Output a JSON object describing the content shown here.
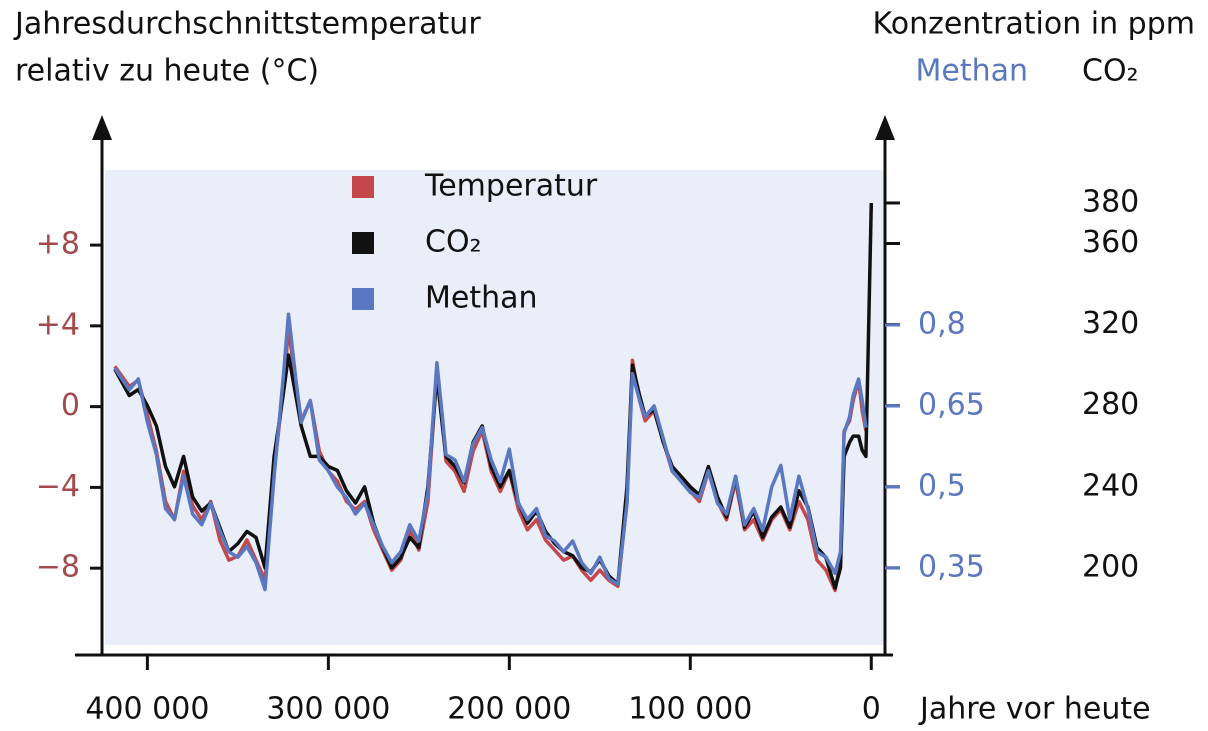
{
  "chart_data": {
    "type": "line",
    "y_label": [
      "Jahresdurchschnittstemperatur",
      "relativ zu heute (°C)"
    ],
    "y2_title": "Konzentration in ppm",
    "y2_label": "CO₂",
    "y3_label": "Methan",
    "x_label": "Jahre vor heute",
    "xlim": [
      440000,
      -12000
    ],
    "xticks": [
      {
        "value": 400000,
        "label": "400 000"
      },
      {
        "value": 300000,
        "label": "300 000"
      },
      {
        "value": 200000,
        "label": "200 000"
      },
      {
        "value": 100000,
        "label": "100 000"
      },
      0
    ],
    "ylim": [
      -12.3,
      13.7
    ],
    "yticks": [
      {
        "value": 8,
        "label": "+8"
      },
      {
        "value": 4,
        "label": "+4"
      },
      0,
      {
        "value": -4,
        "label": "−4"
      },
      {
        "value": -8,
        "label": "−8"
      }
    ],
    "y2lim": [
      157,
      416
    ],
    "y2ticks": [
      380,
      360,
      320,
      280,
      240,
      200
    ],
    "y3lim": [
      0.189,
      1.161
    ],
    "y3ticks": [
      {
        "value": 0.8,
        "label": "0,8"
      },
      {
        "value": 0.65,
        "label": "0,65"
      },
      {
        "value": 0.5,
        "label": "0,5"
      },
      {
        "value": 0.35,
        "label": "0,35"
      }
    ],
    "x": [
      418000,
      410000,
      405000,
      400000,
      395000,
      390000,
      385000,
      380000,
      375000,
      370000,
      365000,
      360000,
      355000,
      350000,
      345000,
      340000,
      335000,
      330000,
      325000,
      322000,
      318000,
      315000,
      310000,
      305000,
      300000,
      295000,
      290000,
      285000,
      280000,
      275000,
      270000,
      265000,
      260000,
      255000,
      250000,
      245000,
      240000,
      237000,
      235000,
      230000,
      225000,
      220000,
      215000,
      210000,
      205000,
      200000,
      195000,
      190000,
      185000,
      180000,
      175000,
      170000,
      165000,
      160000,
      155000,
      150000,
      145000,
      140000,
      135000,
      132000,
      128000,
      125000,
      120000,
      115000,
      110000,
      105000,
      100000,
      95000,
      90000,
      85000,
      80000,
      75000,
      70000,
      65000,
      60000,
      55000,
      50000,
      45000,
      40000,
      35000,
      30000,
      25000,
      20000,
      17000,
      15000,
      12000,
      10000,
      7000,
      5000,
      3000,
      0
    ],
    "series": [
      {
        "name": "Temperatur",
        "color": "#c4484b",
        "axis": "y",
        "values": [
          2.0,
          1.0,
          1.3,
          -0.4,
          -2.2,
          -4.7,
          -5.6,
          -3.2,
          -4.9,
          -5.6,
          -4.7,
          -6.6,
          -7.6,
          -7.4,
          -6.6,
          -7.6,
          -8.6,
          -3.2,
          0.8,
          3.8,
          1.3,
          -0.7,
          0.3,
          -2.2,
          -3.2,
          -3.7,
          -4.7,
          -5.1,
          -4.7,
          -6.1,
          -7.1,
          -8.1,
          -7.6,
          -6.1,
          -7.1,
          -4.7,
          1.8,
          -0.7,
          -2.7,
          -3.2,
          -4.2,
          -2.2,
          -1.2,
          -3.2,
          -4.2,
          -3.2,
          -5.1,
          -6.1,
          -5.6,
          -6.6,
          -7.1,
          -7.6,
          -7.4,
          -8.1,
          -8.6,
          -8.1,
          -8.6,
          -8.9,
          -4.7,
          2.3,
          0.3,
          -0.7,
          -0.2,
          -1.7,
          -3.2,
          -3.7,
          -4.2,
          -4.7,
          -3.2,
          -4.7,
          -5.6,
          -3.7,
          -6.1,
          -5.6,
          -6.6,
          -5.6,
          -5.1,
          -6.1,
          -4.7,
          -5.6,
          -7.6,
          -8.1,
          -9.1,
          -7.6,
          -1.2,
          -0.7,
          0.3,
          1.3,
          -0.2,
          -1.2,
          null
        ]
      },
      {
        "name": "CO₂",
        "color": "#111111",
        "axis": "y2",
        "values": [
          298,
          285,
          288,
          280,
          270,
          250,
          240,
          255,
          235,
          228,
          232,
          220,
          208,
          212,
          218,
          215,
          200,
          255,
          285,
          305,
          285,
          270,
          255,
          255,
          250,
          248,
          238,
          232,
          240,
          222,
          210,
          200,
          205,
          215,
          210,
          240,
          295,
          270,
          255,
          250,
          242,
          262,
          270,
          250,
          240,
          248,
          232,
          222,
          228,
          218,
          212,
          208,
          206,
          200,
          198,
          204,
          196,
          192,
          240,
          300,
          285,
          275,
          278,
          262,
          250,
          245,
          240,
          236,
          250,
          235,
          225,
          245,
          220,
          228,
          215,
          225,
          230,
          220,
          238,
          230,
          210,
          205,
          190,
          200,
          255,
          262,
          265,
          265,
          258,
          255,
          380
        ]
      },
      {
        "name": "Methan",
        "color": "#5a78c2",
        "axis": "y3",
        "values": [
          0.72,
          0.68,
          0.7,
          0.62,
          0.56,
          0.46,
          0.44,
          0.52,
          0.45,
          0.43,
          0.47,
          0.42,
          0.38,
          0.37,
          0.39,
          0.36,
          0.31,
          0.52,
          0.7,
          0.82,
          0.7,
          0.62,
          0.66,
          0.55,
          0.53,
          0.5,
          0.48,
          0.45,
          0.47,
          0.43,
          0.39,
          0.36,
          0.38,
          0.43,
          0.4,
          0.49,
          0.73,
          0.63,
          0.56,
          0.55,
          0.51,
          0.58,
          0.61,
          0.55,
          0.51,
          0.57,
          0.47,
          0.44,
          0.46,
          0.41,
          0.4,
          0.38,
          0.4,
          0.36,
          0.34,
          0.37,
          0.33,
          0.32,
          0.47,
          0.71,
          0.66,
          0.63,
          0.65,
          0.59,
          0.53,
          0.51,
          0.49,
          0.48,
          0.53,
          0.47,
          0.45,
          0.52,
          0.43,
          0.46,
          0.42,
          0.5,
          0.54,
          0.44,
          0.52,
          0.46,
          0.38,
          0.37,
          0.34,
          0.38,
          0.6,
          0.63,
          0.67,
          0.7,
          0.66,
          0.61,
          null
        ]
      }
    ]
  }
}
